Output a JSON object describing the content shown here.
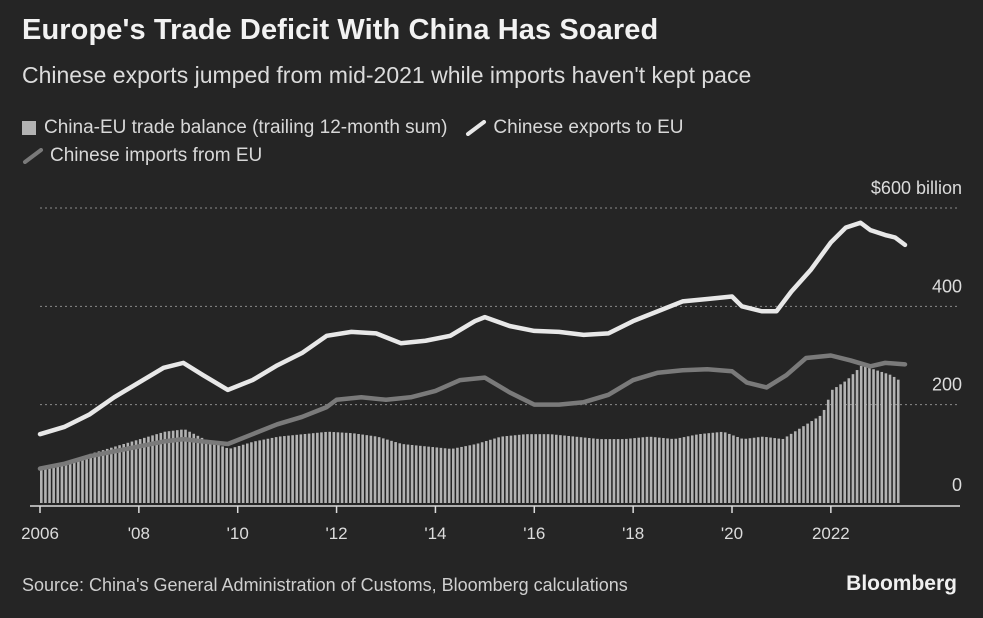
{
  "title": "Europe's Trade Deficit With China Has Soared",
  "subtitle": "Chinese exports jumped from mid-2021 while imports haven't kept pace",
  "legend": {
    "balance": "China-EU trade balance (trailing 12-month sum)",
    "exports": "Chinese exports to EU",
    "imports": "Chinese imports from EU"
  },
  "source": "Source: China's General Administration of Customs, Bloomberg calculations",
  "brand": "Bloomberg",
  "colors": {
    "background": "#252525",
    "balance_bars": "#b3b3b3",
    "exports_line": "#e8e8e8",
    "imports_line": "#7a7a7a",
    "grid": "#8a8a8a",
    "axis": "#dcdcdc"
  },
  "chart_data": {
    "type": "bar",
    "x_range": [
      2006.0,
      2023.5
    ],
    "ylim": [
      0,
      600
    ],
    "y_ticks": [
      {
        "value": 0,
        "label": "0"
      },
      {
        "value": 200,
        "label": "200"
      },
      {
        "value": 400,
        "label": "400"
      },
      {
        "value": 600,
        "label": "$600 billion"
      }
    ],
    "x_ticks": [
      {
        "value": 2006,
        "label": "2006"
      },
      {
        "value": 2008,
        "label": "'08"
      },
      {
        "value": 2010,
        "label": "'10"
      },
      {
        "value": 2012,
        "label": "'12"
      },
      {
        "value": 2014,
        "label": "'14"
      },
      {
        "value": 2016,
        "label": "'16"
      },
      {
        "value": 2018,
        "label": "'18"
      },
      {
        "value": 2020,
        "label": "'20"
      },
      {
        "value": 2022,
        "label": "2022"
      }
    ],
    "grid": true,
    "series": [
      {
        "name": "China-EU trade balance (trailing 12-month sum)",
        "type": "bar",
        "x": [
          2006.0,
          2006.5,
          2007.0,
          2007.5,
          2008.0,
          2008.5,
          2008.9,
          2009.3,
          2009.8,
          2010.3,
          2010.8,
          2011.3,
          2011.8,
          2012.3,
          2012.8,
          2013.3,
          2013.8,
          2014.3,
          2014.8,
          2015.3,
          2015.8,
          2016.3,
          2016.8,
          2017.3,
          2017.8,
          2018.3,
          2018.8,
          2019.3,
          2019.8,
          2020.2,
          2020.6,
          2021.0,
          2021.4,
          2021.8,
          2022.0,
          2022.3,
          2022.6,
          2022.9,
          2023.2,
          2023.5
        ],
        "values": [
          70,
          80,
          100,
          115,
          130,
          145,
          150,
          130,
          110,
          125,
          135,
          140,
          145,
          142,
          135,
          120,
          115,
          110,
          120,
          135,
          140,
          140,
          135,
          130,
          130,
          135,
          130,
          140,
          145,
          130,
          135,
          130,
          155,
          180,
          230,
          250,
          280,
          270,
          260,
          240
        ]
      },
      {
        "name": "Chinese exports to EU",
        "type": "line",
        "x": [
          2006.0,
          2006.5,
          2007.0,
          2007.5,
          2008.0,
          2008.5,
          2008.9,
          2009.3,
          2009.8,
          2010.3,
          2010.8,
          2011.3,
          2011.8,
          2012.3,
          2012.8,
          2013.3,
          2013.8,
          2014.3,
          2014.8,
          2015.0,
          2015.5,
          2016.0,
          2016.5,
          2017.0,
          2017.5,
          2018.0,
          2018.5,
          2019.0,
          2019.5,
          2020.0,
          2020.2,
          2020.6,
          2020.9,
          2021.2,
          2021.6,
          2022.0,
          2022.3,
          2022.6,
          2022.8,
          2023.1,
          2023.3,
          2023.5
        ],
        "values": [
          140,
          155,
          180,
          215,
          245,
          275,
          285,
          260,
          230,
          250,
          280,
          305,
          340,
          348,
          345,
          325,
          330,
          340,
          370,
          378,
          360,
          350,
          348,
          342,
          345,
          370,
          390,
          410,
          415,
          420,
          400,
          390,
          390,
          430,
          475,
          530,
          560,
          570,
          555,
          545,
          540,
          525
        ]
      },
      {
        "name": "Chinese imports from EU",
        "type": "line",
        "x": [
          2006.0,
          2006.5,
          2007.0,
          2007.5,
          2008.0,
          2008.5,
          2008.9,
          2009.3,
          2009.8,
          2010.3,
          2010.8,
          2011.3,
          2011.8,
          2012.0,
          2012.5,
          2013.0,
          2013.5,
          2014.0,
          2014.5,
          2015.0,
          2015.5,
          2016.0,
          2016.5,
          2017.0,
          2017.5,
          2018.0,
          2018.5,
          2019.0,
          2019.5,
          2020.0,
          2020.3,
          2020.7,
          2021.1,
          2021.5,
          2022.0,
          2022.4,
          2022.8,
          2023.1,
          2023.5
        ],
        "values": [
          70,
          80,
          95,
          105,
          115,
          125,
          130,
          125,
          120,
          140,
          160,
          175,
          195,
          210,
          215,
          210,
          215,
          228,
          250,
          255,
          225,
          200,
          200,
          205,
          220,
          250,
          265,
          270,
          272,
          268,
          245,
          235,
          260,
          295,
          300,
          290,
          278,
          285,
          282
        ]
      }
    ]
  }
}
